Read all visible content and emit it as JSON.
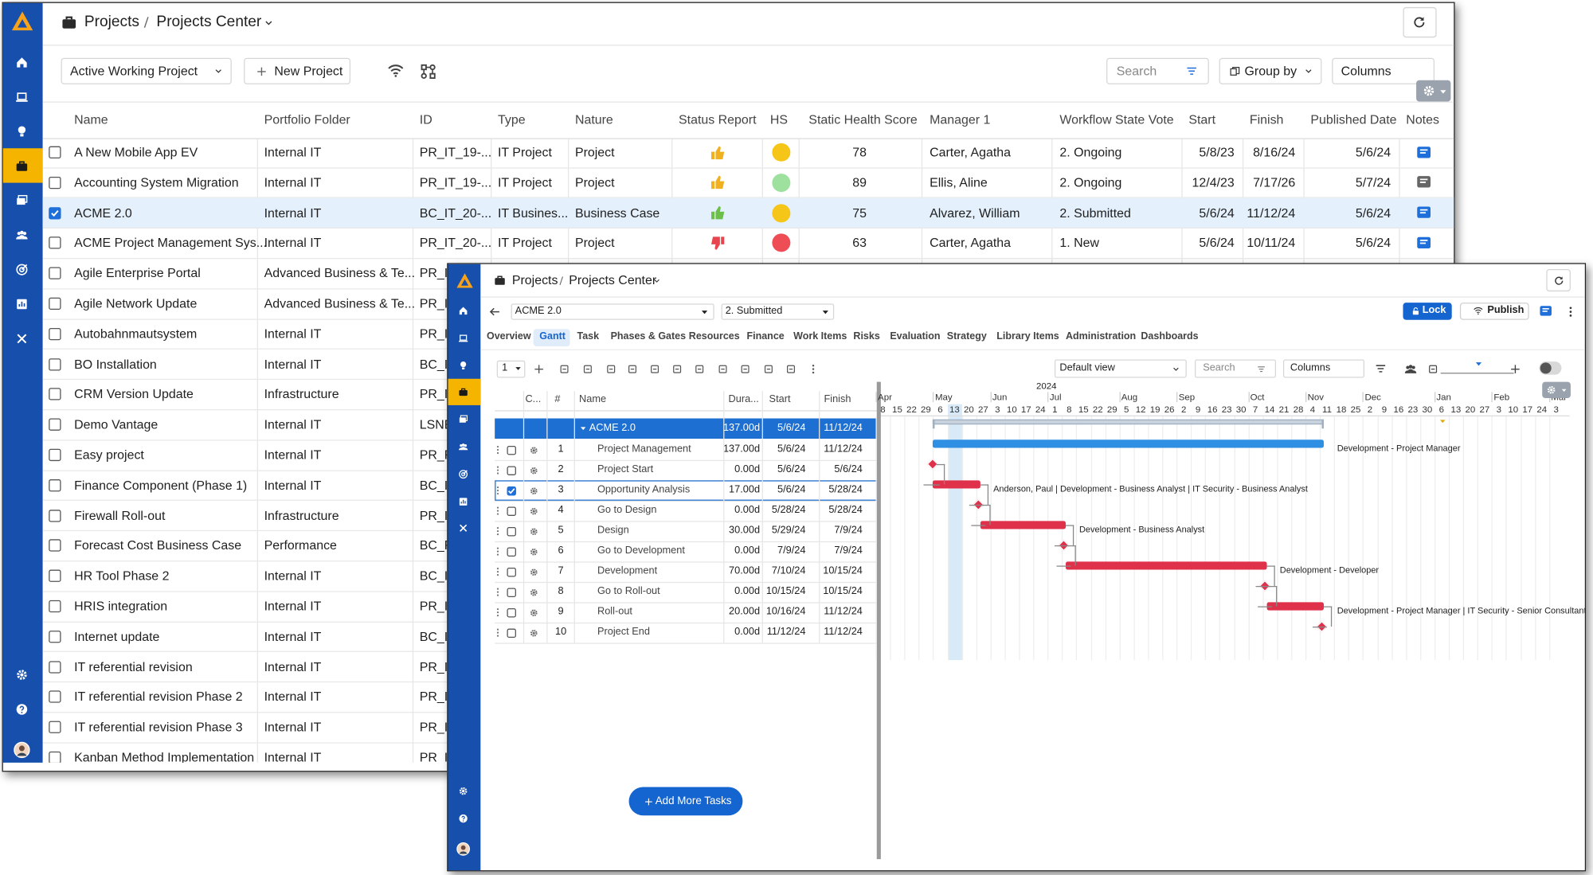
{
  "back_window": {
    "breadcrumb": [
      "Projects",
      "Projects Center"
    ],
    "toolbar": {
      "view": "Active Working Project",
      "new_button": "New Project",
      "search": "Search",
      "group_by": "Group by",
      "columns": "Columns"
    },
    "table": {
      "columns": [
        "Name",
        "Portfolio Folder",
        "ID",
        "Type",
        "Nature",
        "Status Report",
        "HS",
        "Static Health Score",
        "Manager 1",
        "Workflow State Vote",
        "Start",
        "Finish",
        "Published Date",
        "Notes"
      ],
      "rows": [
        {
          "name": "A New Mobile App EV",
          "folder": "Internal IT",
          "id": "PR_IT_19-...",
          "type": "IT Project",
          "nature": "Project",
          "status_icon": "thumbs-up",
          "status_color": "#f0b020",
          "hs_color": "#f5c518",
          "score": 78,
          "manager": "Carter, Agatha",
          "workflow": "2. Ongoing",
          "start": "5/8/23",
          "finish": "8/16/24",
          "published": "5/6/24",
          "notes_color": "#1e6fd9"
        },
        {
          "name": "Accounting System Migration",
          "folder": "Internal IT",
          "id": "PR_IT_19-...",
          "type": "IT Project",
          "nature": "Project",
          "status_icon": "thumbs-up",
          "status_color": "#f0b020",
          "hs_color": "#9ee09e",
          "score": 89,
          "manager": "Ellis, Aline",
          "workflow": "2. Ongoing",
          "start": "12/4/23",
          "finish": "7/17/26",
          "published": "5/7/24",
          "notes_color": "#666666"
        },
        {
          "name": "ACME 2.0",
          "folder": "Internal IT",
          "id": "BC_IT_20-...",
          "type": "IT Busines...",
          "nature": "Business Case",
          "status_icon": "thumbs-up",
          "status_color": "#6cc04a",
          "hs_color": "#f5c518",
          "score": 75,
          "manager": "Alvarez, William",
          "workflow": "2. Submitted",
          "start": "5/6/24",
          "finish": "11/12/24",
          "published": "5/6/24",
          "notes_color": "#1e6fd9",
          "selected": true
        },
        {
          "name": "ACME Project Management Sys...",
          "folder": "Internal IT",
          "id": "PR_IT_20-...",
          "type": "IT Project",
          "nature": "Project",
          "status_icon": "thumbs-down",
          "status_color": "#e8454f",
          "hs_color": "#ee4d55",
          "score": 63,
          "manager": "Carter, Agatha",
          "workflow": "1. New",
          "start": "5/6/24",
          "finish": "10/11/24",
          "published": "5/6/24",
          "notes_color": "#1e6fd9"
        },
        {
          "name": "Agile Enterprise Portal",
          "folder": "Advanced Business & Te...",
          "id": "PR_IT"
        },
        {
          "name": "Agile Network Update",
          "folder": "Advanced Business & Te...",
          "id": "PR_IT"
        },
        {
          "name": "Autobahnmautsystem",
          "folder": "Internal IT",
          "id": "PR_IT"
        },
        {
          "name": "BO Installation",
          "folder": "Internal IT",
          "id": "BC_IT"
        },
        {
          "name": "CRM Version Update",
          "folder": "Infrastructure",
          "id": "PR_IT"
        },
        {
          "name": "Demo Vantage",
          "folder": "Internal IT",
          "id": "LSNE"
        },
        {
          "name": "Easy project",
          "folder": "Internal IT",
          "id": "PR_R"
        },
        {
          "name": "Finance Component (Phase 1)",
          "folder": "Internal IT",
          "id": "BC_IT"
        },
        {
          "name": "Firewall Roll-out",
          "folder": "Infrastructure",
          "id": "PR_IT"
        },
        {
          "name": "Forecast Cost Business Case",
          "folder": "Performance",
          "id": "BC_R"
        },
        {
          "name": "HR Tool Phase 2",
          "folder": "Internal IT",
          "id": "BC_IT"
        },
        {
          "name": "HRIS integration",
          "folder": "Internal IT",
          "id": "PR_IT"
        },
        {
          "name": "Internet update",
          "folder": "Internal IT",
          "id": "BC_IT"
        },
        {
          "name": "IT referential revision",
          "folder": "Internal IT",
          "id": "PR_IT"
        },
        {
          "name": "IT referential revision Phase 2",
          "folder": "Internal IT",
          "id": "PR_IT"
        },
        {
          "name": "IT referential revision Phase 3",
          "folder": "Internal IT",
          "id": "PR_IT"
        },
        {
          "name": "Kanban Method Implementation",
          "folder": "Internal IT",
          "id": "PR_IT"
        }
      ]
    }
  },
  "front_window": {
    "breadcrumb": [
      "Projects",
      "Projects Center"
    ],
    "project": "ACME 2.0",
    "state": "2. Submitted",
    "lock": "Lock",
    "publish": "Publish",
    "tabs": [
      "Overview",
      "Gantt",
      "Task",
      "Phases & Gates",
      "Resources",
      "Finance",
      "Work Items",
      "Risks",
      "Evaluation",
      "Strategy",
      "Library Items",
      "Administration",
      "Dashboards"
    ],
    "toolbar": {
      "level": "1",
      "view": "Default view",
      "search": "Search",
      "columns": "Columns"
    },
    "grid": {
      "columns": [
        "C...",
        "#",
        "Name",
        "Dura...",
        "Start",
        "Finish"
      ],
      "summary": {
        "name": "ACME 2.0",
        "duration": "137.00d",
        "start": "5/6/24",
        "finish": "11/12/24"
      },
      "tasks": [
        {
          "num": 1,
          "name": "Project Management",
          "duration": "137.00d",
          "start": "5/6/24",
          "finish": "11/12/24",
          "color": "#2f8fe3",
          "resources": "Development - Project Manager"
        },
        {
          "num": 2,
          "name": "Project Start",
          "duration": "0.00d",
          "start": "5/6/24",
          "finish": "5/6/24",
          "color": "#e0314b"
        },
        {
          "num": 3,
          "name": "Opportunity Analysis",
          "duration": "17.00d",
          "start": "5/6/24",
          "finish": "5/28/24",
          "color": "#e0314b",
          "resources": "Anderson, Paul | Development - Business Analyst | IT Security - Business Analyst",
          "selected": true
        },
        {
          "num": 4,
          "name": "Go to Design",
          "duration": "0.00d",
          "start": "5/28/24",
          "finish": "5/28/24",
          "color": "#e0314b"
        },
        {
          "num": 5,
          "name": "Design",
          "duration": "30.00d",
          "start": "5/29/24",
          "finish": "7/9/24",
          "color": "#e0314b",
          "resources": "Development - Business Analyst"
        },
        {
          "num": 6,
          "name": "Go to Development",
          "duration": "0.00d",
          "start": "7/9/24",
          "finish": "7/9/24",
          "color": "#e0314b"
        },
        {
          "num": 7,
          "name": "Development",
          "duration": "70.00d",
          "start": "7/10/24",
          "finish": "10/15/24",
          "color": "#e0314b",
          "resources": "Development - Developer"
        },
        {
          "num": 8,
          "name": "Go to Roll-out",
          "duration": "0.00d",
          "start": "10/15/24",
          "finish": "10/15/24",
          "color": "#e0314b"
        },
        {
          "num": 9,
          "name": "Roll-out",
          "duration": "20.00d",
          "start": "10/16/24",
          "finish": "11/12/24",
          "color": "#e0314b",
          "resources": "Development - Project Manager | IT Security - Senior Consultant"
        },
        {
          "num": 10,
          "name": "Project End",
          "duration": "0.00d",
          "start": "11/12/24",
          "finish": "11/12/24",
          "color": "#e0314b"
        }
      ]
    },
    "gantt": {
      "year": "2024",
      "months": [
        "Apr",
        "May",
        "Jun",
        "Jul",
        "Aug",
        "Sep",
        "Oct",
        "Nov",
        "Dec",
        "Jan",
        "Feb",
        "Mar"
      ],
      "days": [
        8,
        15,
        22,
        29,
        6,
        13,
        20,
        27,
        3,
        10,
        17,
        24,
        1,
        8,
        15,
        22,
        29,
        5,
        12,
        19,
        26,
        2,
        9,
        16,
        23,
        30,
        7,
        14,
        21,
        28,
        4,
        11,
        18,
        25,
        2,
        9,
        16,
        23,
        30,
        6,
        13,
        20,
        27,
        3,
        10,
        17,
        24,
        3
      ]
    },
    "add_button": "Add More Tasks"
  }
}
